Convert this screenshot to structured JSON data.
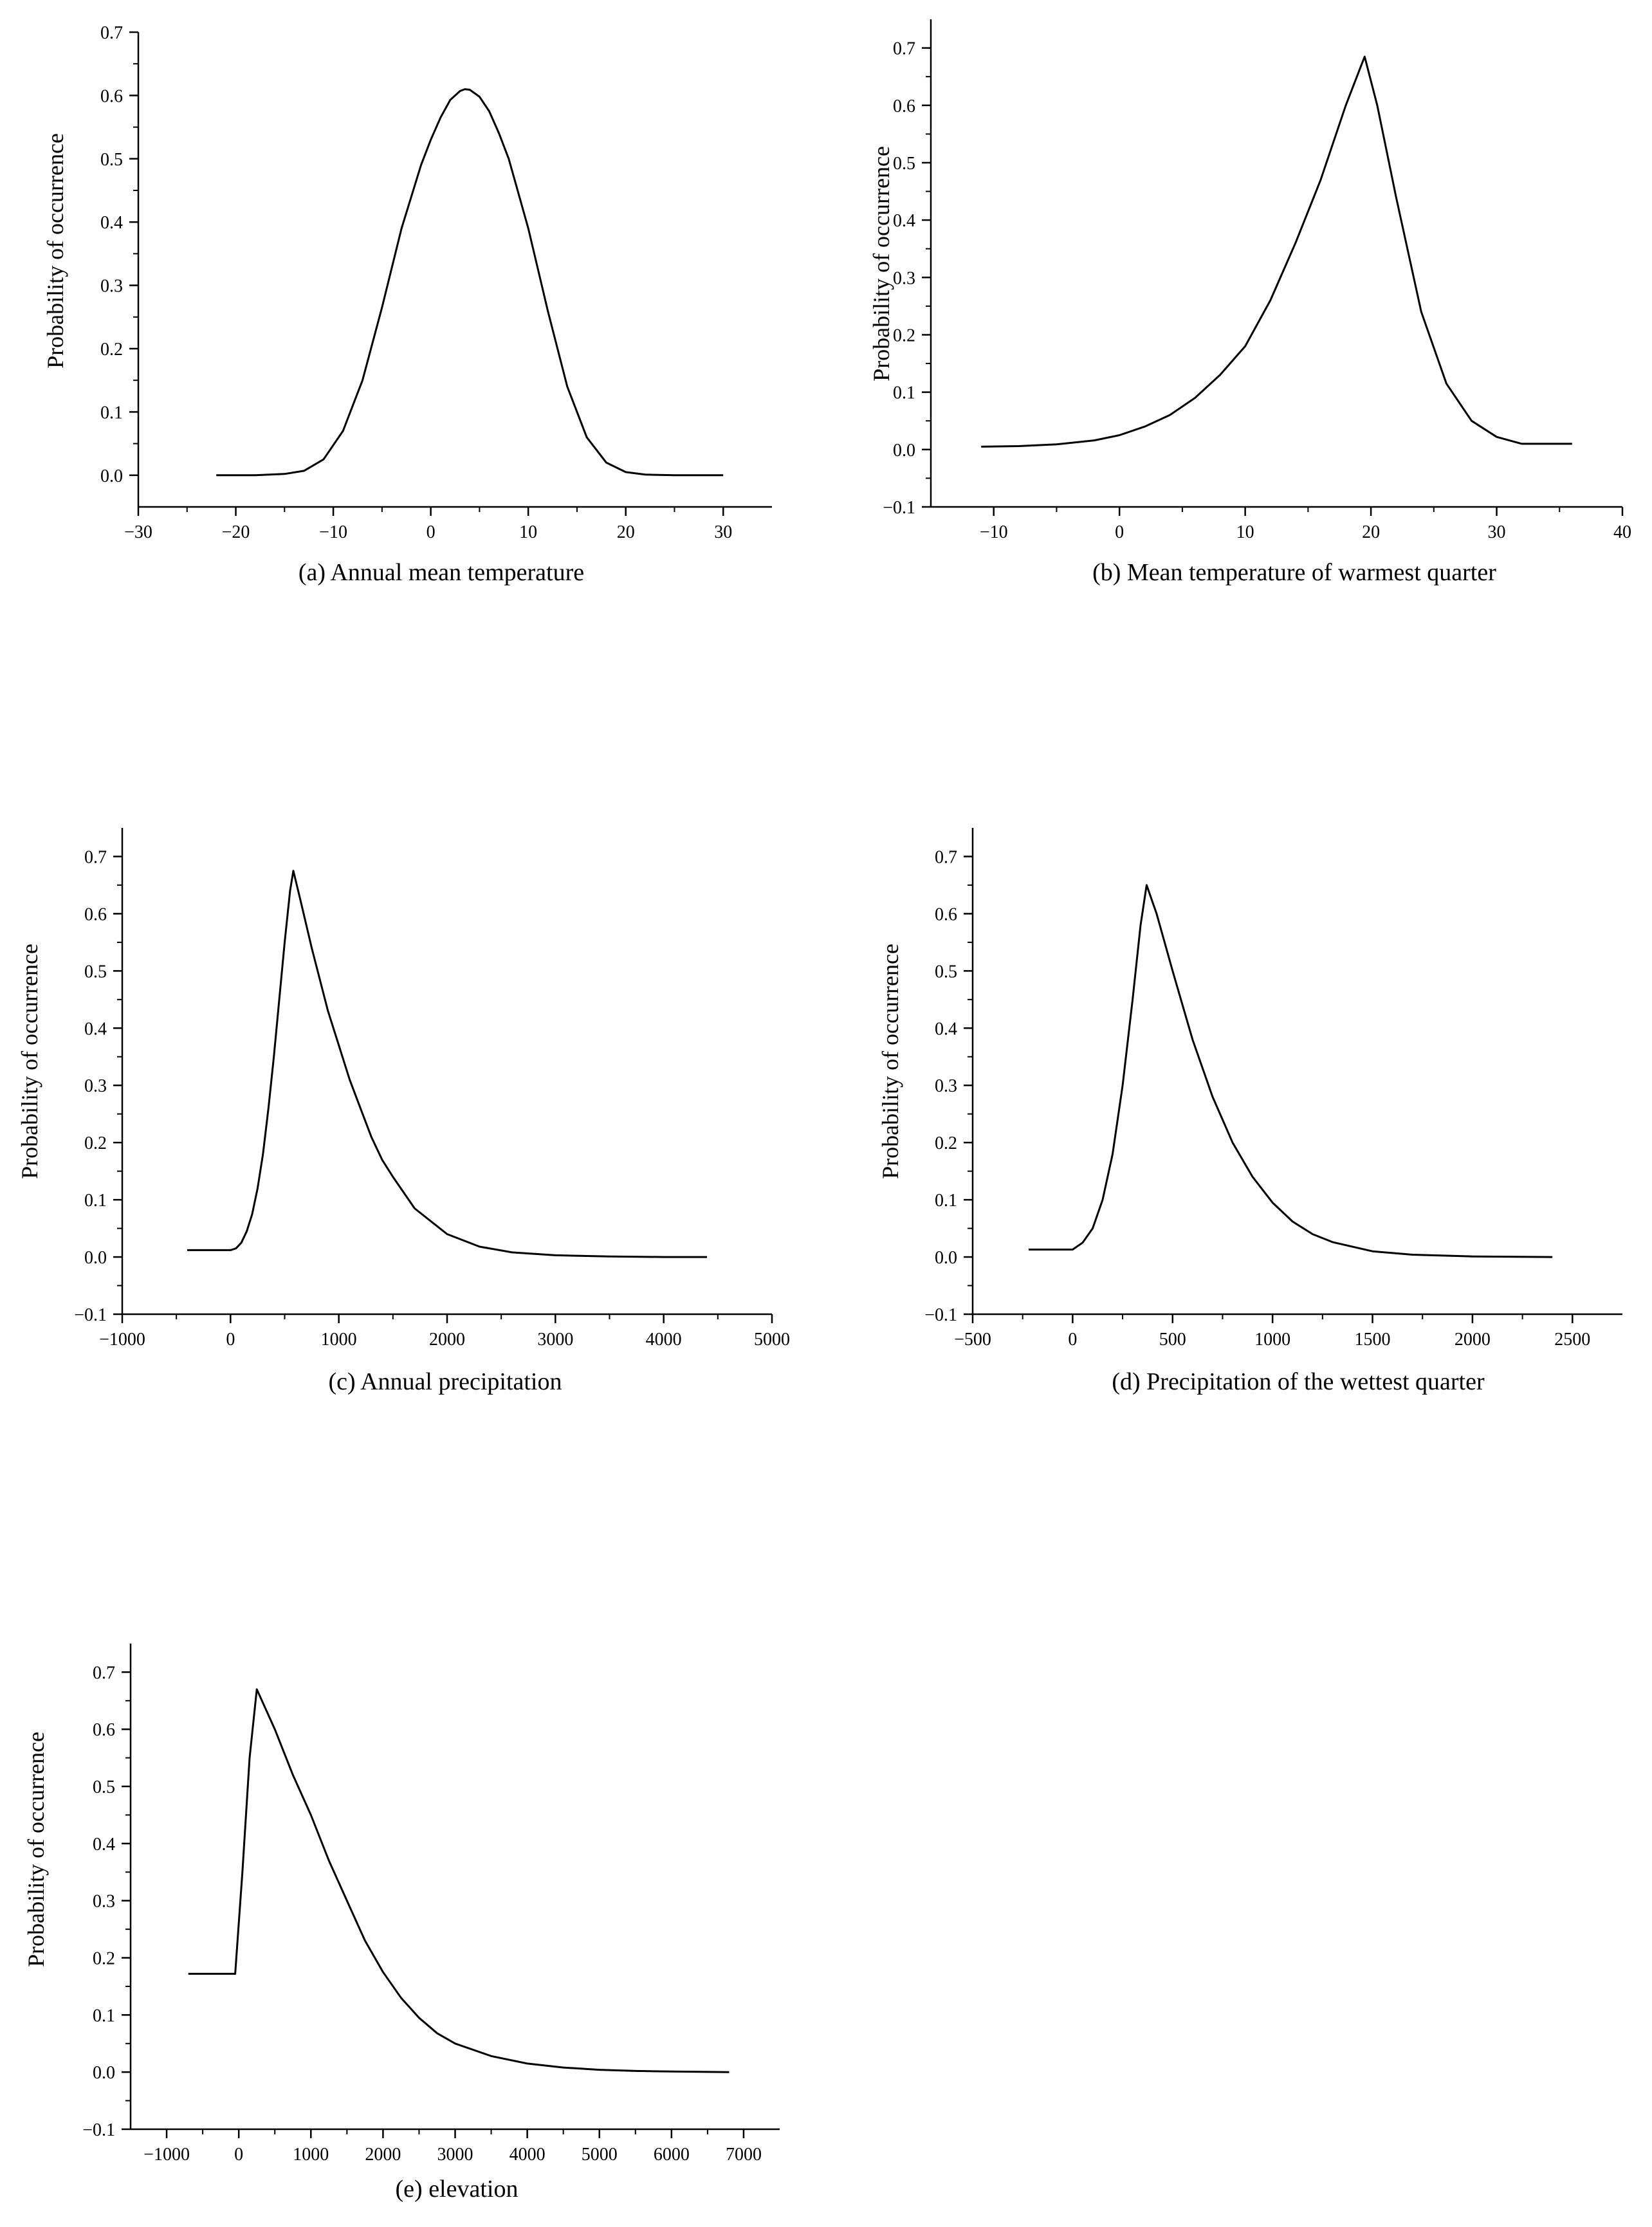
{
  "chart_data": [
    {
      "id": "a",
      "type": "line",
      "title": "(a) Annual mean temperature",
      "xlabel": "",
      "ylabel": "Probability of occurrence",
      "xlim": [
        -30,
        35
      ],
      "ylim": [
        -0.05,
        0.7
      ],
      "xticks": [
        -30,
        -20,
        -10,
        0,
        10,
        20,
        30
      ],
      "xtick_labels": [
        "−30",
        "−20",
        "−10",
        "0",
        "10",
        "20",
        "30"
      ],
      "yticks": [
        0.0,
        0.1,
        0.2,
        0.3,
        0.4,
        0.5,
        0.6,
        0.7
      ],
      "ytick_labels": [
        "0.0",
        "0.1",
        "0.2",
        "0.3",
        "0.4",
        "0.5",
        "0.6",
        "0.7"
      ],
      "series": [
        {
          "name": "Annual mean temperature",
          "x": [
            -22,
            -18,
            -15,
            -13,
            -11,
            -9,
            -7,
            -5,
            -3,
            -1,
            0,
            1,
            2,
            3,
            3.5,
            4,
            5,
            6,
            7,
            8,
            10,
            12,
            14,
            16,
            18,
            20,
            22,
            25,
            30
          ],
          "y": [
            0.0,
            0.0,
            0.002,
            0.007,
            0.025,
            0.07,
            0.15,
            0.265,
            0.39,
            0.49,
            0.53,
            0.565,
            0.593,
            0.607,
            0.61,
            0.609,
            0.598,
            0.575,
            0.54,
            0.5,
            0.39,
            0.26,
            0.14,
            0.06,
            0.02,
            0.005,
            0.001,
            0.0,
            0.0
          ]
        }
      ]
    },
    {
      "id": "b",
      "type": "line",
      "title": "(b) Mean temperature of warmest quarter",
      "xlabel": "",
      "ylabel": "Probability of occurrence",
      "xlim": [
        -15,
        40
      ],
      "ylim": [
        -0.1,
        0.75
      ],
      "xticks": [
        -10,
        0,
        10,
        20,
        30,
        40
      ],
      "xtick_labels": [
        "−10",
        "0",
        "10",
        "20",
        "30",
        "40"
      ],
      "yticks": [
        -0.1,
        0.0,
        0.1,
        0.2,
        0.3,
        0.4,
        0.5,
        0.6,
        0.7
      ],
      "ytick_labels": [
        "−0.1",
        "0.0",
        "0.1",
        "0.2",
        "0.3",
        "0.4",
        "0.5",
        "0.6",
        "0.7"
      ],
      "series": [
        {
          "name": "Mean temperature of warmest quarter",
          "x": [
            -11,
            -8,
            -5,
            -2,
            0,
            2,
            4,
            6,
            8,
            10,
            12,
            14,
            16,
            18,
            19.5,
            20.5,
            22,
            24,
            26,
            28,
            30,
            32,
            36
          ],
          "y": [
            0.005,
            0.006,
            0.009,
            0.016,
            0.025,
            0.04,
            0.06,
            0.09,
            0.13,
            0.18,
            0.26,
            0.36,
            0.47,
            0.6,
            0.685,
            0.6,
            0.44,
            0.24,
            0.115,
            0.05,
            0.022,
            0.01,
            0.01
          ]
        }
      ]
    },
    {
      "id": "c",
      "type": "line",
      "title": "(c) Annual precipitation",
      "xlabel": "",
      "ylabel": "Probability of occurrence",
      "xlim": [
        -1000,
        5000
      ],
      "ylim": [
        -0.1,
        0.75
      ],
      "xticks": [
        -1000,
        0,
        1000,
        2000,
        3000,
        4000,
        5000
      ],
      "xtick_labels": [
        "−1000",
        "0",
        "1000",
        "2000",
        "3000",
        "4000",
        "5000"
      ],
      "yticks": [
        -0.1,
        0.0,
        0.1,
        0.2,
        0.3,
        0.4,
        0.5,
        0.6,
        0.7
      ],
      "ytick_labels": [
        "−0.1",
        "0.0",
        "0.1",
        "0.2",
        "0.3",
        "0.4",
        "0.5",
        "0.6",
        "0.7"
      ],
      "series": [
        {
          "name": "Annual precipitation",
          "x": [
            -400,
            0,
            50,
            100,
            150,
            200,
            250,
            300,
            350,
            400,
            450,
            500,
            550,
            580,
            650,
            750,
            900,
            1000,
            1100,
            1200,
            1300,
            1400,
            1500,
            1700,
            2000,
            2300,
            2600,
            3000,
            3500,
            4000,
            4400
          ],
          "y": [
            0.012,
            0.012,
            0.015,
            0.025,
            0.045,
            0.075,
            0.12,
            0.18,
            0.26,
            0.35,
            0.45,
            0.55,
            0.64,
            0.675,
            0.62,
            0.54,
            0.43,
            0.37,
            0.31,
            0.26,
            0.21,
            0.17,
            0.14,
            0.085,
            0.04,
            0.018,
            0.008,
            0.003,
            0.001,
            0.0,
            0.0
          ]
        }
      ]
    },
    {
      "id": "d",
      "type": "line",
      "title": "(d) Precipitation of the wettest quarter",
      "xlabel": "",
      "ylabel": "Probability of occurrence",
      "xlim": [
        -500,
        2750
      ],
      "ylim": [
        -0.1,
        0.75
      ],
      "xticks": [
        -500,
        0,
        500,
        1000,
        1500,
        2000,
        2500
      ],
      "xtick_labels": [
        "−500",
        "0",
        "500",
        "1000",
        "1500",
        "2000",
        "2500"
      ],
      "yticks": [
        -0.1,
        0.0,
        0.1,
        0.2,
        0.3,
        0.4,
        0.5,
        0.6,
        0.7
      ],
      "ytick_labels": [
        "−0.1",
        "0.0",
        "0.1",
        "0.2",
        "0.3",
        "0.4",
        "0.5",
        "0.6",
        "0.7"
      ],
      "series": [
        {
          "name": "Precipitation of the wettest quarter",
          "x": [
            -220,
            0,
            50,
            100,
            150,
            200,
            250,
            300,
            340,
            370,
            420,
            500,
            600,
            700,
            800,
            900,
            1000,
            1100,
            1200,
            1300,
            1500,
            1700,
            2000,
            2400
          ],
          "y": [
            0.013,
            0.013,
            0.025,
            0.05,
            0.1,
            0.18,
            0.3,
            0.45,
            0.58,
            0.65,
            0.6,
            0.5,
            0.38,
            0.28,
            0.2,
            0.14,
            0.095,
            0.062,
            0.04,
            0.026,
            0.01,
            0.004,
            0.001,
            0.0
          ]
        }
      ]
    },
    {
      "id": "e",
      "type": "line",
      "title": "(e) elevation",
      "xlabel": "",
      "ylabel": "Probability of occurrence",
      "xlim": [
        -1500,
        7500
      ],
      "ylim": [
        -0.1,
        0.75
      ],
      "xticks": [
        -1000,
        0,
        1000,
        2000,
        3000,
        4000,
        5000,
        6000,
        7000
      ],
      "xtick_labels": [
        "−1000",
        "0",
        "1000",
        "2000",
        "3000",
        "4000",
        "5000",
        "6000",
        "7000"
      ],
      "yticks": [
        -0.1,
        0.0,
        0.1,
        0.2,
        0.3,
        0.4,
        0.5,
        0.6,
        0.7
      ],
      "ytick_labels": [
        "−0.1",
        "0.0",
        "0.1",
        "0.2",
        "0.3",
        "0.4",
        "0.5",
        "0.6",
        "0.7"
      ],
      "series": [
        {
          "name": "elevation",
          "x": [
            -700,
            -50,
            50,
            150,
            250,
            500,
            750,
            1000,
            1250,
            1500,
            1750,
            2000,
            2250,
            2500,
            2750,
            3000,
            3500,
            4000,
            4500,
            5000,
            5500,
            6000,
            6800
          ],
          "y": [
            0.172,
            0.172,
            0.35,
            0.55,
            0.67,
            0.6,
            0.52,
            0.45,
            0.37,
            0.3,
            0.23,
            0.175,
            0.13,
            0.095,
            0.068,
            0.05,
            0.028,
            0.015,
            0.008,
            0.004,
            0.002,
            0.001,
            0.0
          ]
        }
      ]
    }
  ]
}
